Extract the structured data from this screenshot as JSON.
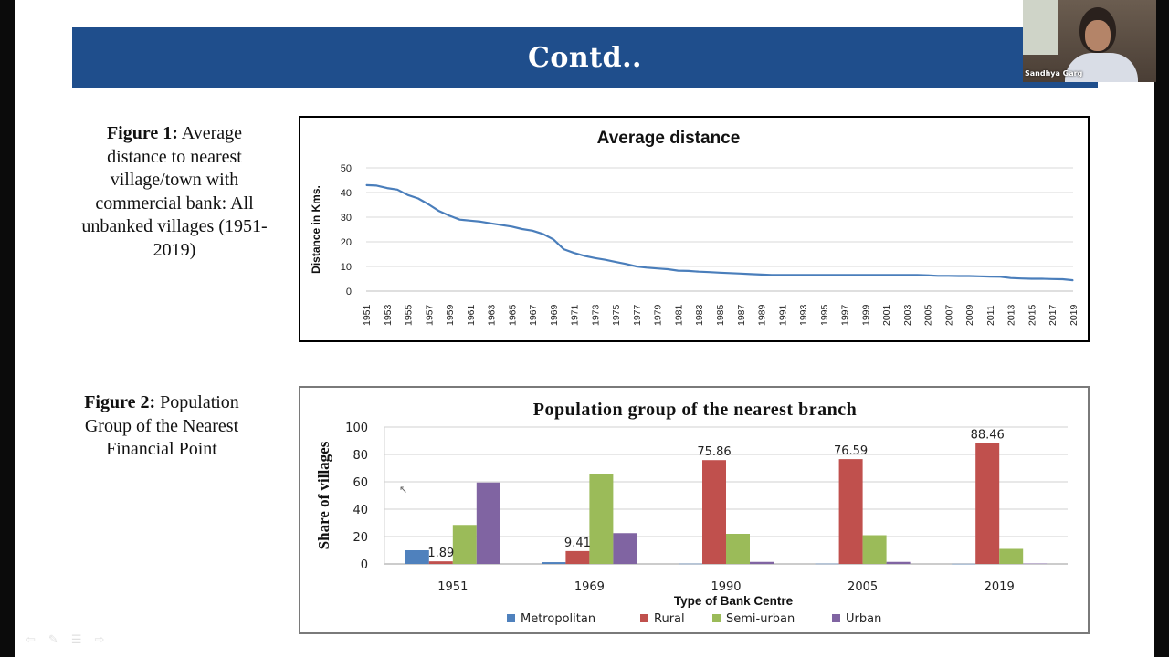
{
  "slide": {
    "title": "Contd.."
  },
  "figure1": {
    "label": "Figure 1:",
    "caption": "Average distance to nearest village/town with commercial bank: All unbanked villages (1951-2019)"
  },
  "figure2": {
    "label": "Figure 2:",
    "caption": "Population Group of the Nearest Financial Point"
  },
  "webcam": {
    "participant_name": "Sandhya Garg"
  },
  "colors": {
    "title_bar": "#1f4e8c",
    "line": "#4a7ebb",
    "metropolitan": "#4f81bd",
    "rural": "#c0504d",
    "semi_urban": "#9bbb59",
    "urban": "#8064a2"
  },
  "nav_icons": [
    "back-arrow-icon",
    "pen-icon",
    "menu-icon",
    "forward-arrow-icon"
  ],
  "chart_data": [
    {
      "type": "line",
      "title": "Average distance",
      "xlabel": "",
      "ylabel": "Distance in Kms.",
      "ylim": [
        0,
        50
      ],
      "yticks": [
        0,
        10,
        20,
        30,
        40,
        50
      ],
      "grid": true,
      "x_tick_labels": [
        "1951",
        "1953",
        "1955",
        "1957",
        "1959",
        "1961",
        "1963",
        "1965",
        "1967",
        "1969",
        "1971",
        "1973",
        "1975",
        "1977",
        "1979",
        "1981",
        "1983",
        "1985",
        "1987",
        "1989",
        "1991",
        "1993",
        "1995",
        "1997",
        "1999",
        "2001",
        "2003",
        "2005",
        "2007",
        "2009",
        "2011",
        "2013",
        "2015",
        "2017",
        "2019"
      ],
      "x": [
        1951,
        1952,
        1953,
        1954,
        1955,
        1956,
        1957,
        1958,
        1959,
        1960,
        1961,
        1962,
        1963,
        1964,
        1965,
        1966,
        1967,
        1968,
        1969,
        1970,
        1971,
        1972,
        1973,
        1974,
        1975,
        1976,
        1977,
        1978,
        1979,
        1980,
        1981,
        1982,
        1983,
        1984,
        1985,
        1986,
        1987,
        1988,
        1989,
        1990,
        1991,
        1992,
        1993,
        1994,
        1995,
        1996,
        1997,
        1998,
        1999,
        2000,
        2001,
        2002,
        2003,
        2004,
        2005,
        2006,
        2007,
        2008,
        2009,
        2010,
        2011,
        2012,
        2013,
        2014,
        2015,
        2016,
        2017,
        2018,
        2019
      ],
      "values": [
        43,
        42.8,
        41.8,
        41.2,
        39,
        37.6,
        35.2,
        32.5,
        30.6,
        29,
        28.6,
        28.2,
        27.5,
        26.8,
        26.2,
        25.2,
        24.5,
        23.2,
        21,
        17,
        15.5,
        14.3,
        13.4,
        12.7,
        11.8,
        11,
        10,
        9.5,
        9.2,
        8.9,
        8.3,
        8.2,
        7.9,
        7.7,
        7.5,
        7.3,
        7.1,
        6.9,
        6.7,
        6.5,
        6.5,
        6.5,
        6.5,
        6.5,
        6.5,
        6.5,
        6.5,
        6.5,
        6.5,
        6.5,
        6.5,
        6.5,
        6.5,
        6.5,
        6.4,
        6.2,
        6.2,
        6.1,
        6.1,
        6.0,
        5.9,
        5.8,
        5.3,
        5.1,
        5.0,
        5.0,
        4.9,
        4.8,
        4.4
      ]
    },
    {
      "type": "bar",
      "title": "Population group of the nearest branch",
      "xlabel": "Type of Bank Centre",
      "ylabel": "Share of villages",
      "ylim": [
        0,
        100
      ],
      "yticks": [
        0,
        20,
        40,
        60,
        80,
        100
      ],
      "grid": true,
      "legend_position": "bottom",
      "categories": [
        "1951",
        "1969",
        "1990",
        "2005",
        "2019"
      ],
      "series": [
        {
          "name": "Metropolitan",
          "color": "#4f81bd",
          "values": [
            10,
            1.3,
            0.2,
            0.2,
            0.1
          ]
        },
        {
          "name": "Rural",
          "color": "#c0504d",
          "values": [
            1.89,
            9.41,
            75.86,
            76.59,
            88.46
          ]
        },
        {
          "name": "Semi-urban",
          "color": "#9bbb59",
          "values": [
            28.5,
            65.5,
            22,
            21,
            11
          ]
        },
        {
          "name": "Urban",
          "color": "#8064a2",
          "values": [
            59.5,
            22.5,
            1.5,
            1.5,
            0.3
          ]
        }
      ],
      "data_labels": [
        {
          "series": "Rural",
          "category": "1951",
          "text": "1.89"
        },
        {
          "series": "Rural",
          "category": "1969",
          "text": "9.41"
        },
        {
          "series": "Rural",
          "category": "1990",
          "text": "75.86"
        },
        {
          "series": "Rural",
          "category": "2005",
          "text": "76.59"
        },
        {
          "series": "Rural",
          "category": "2019",
          "text": "88.46"
        }
      ]
    }
  ]
}
